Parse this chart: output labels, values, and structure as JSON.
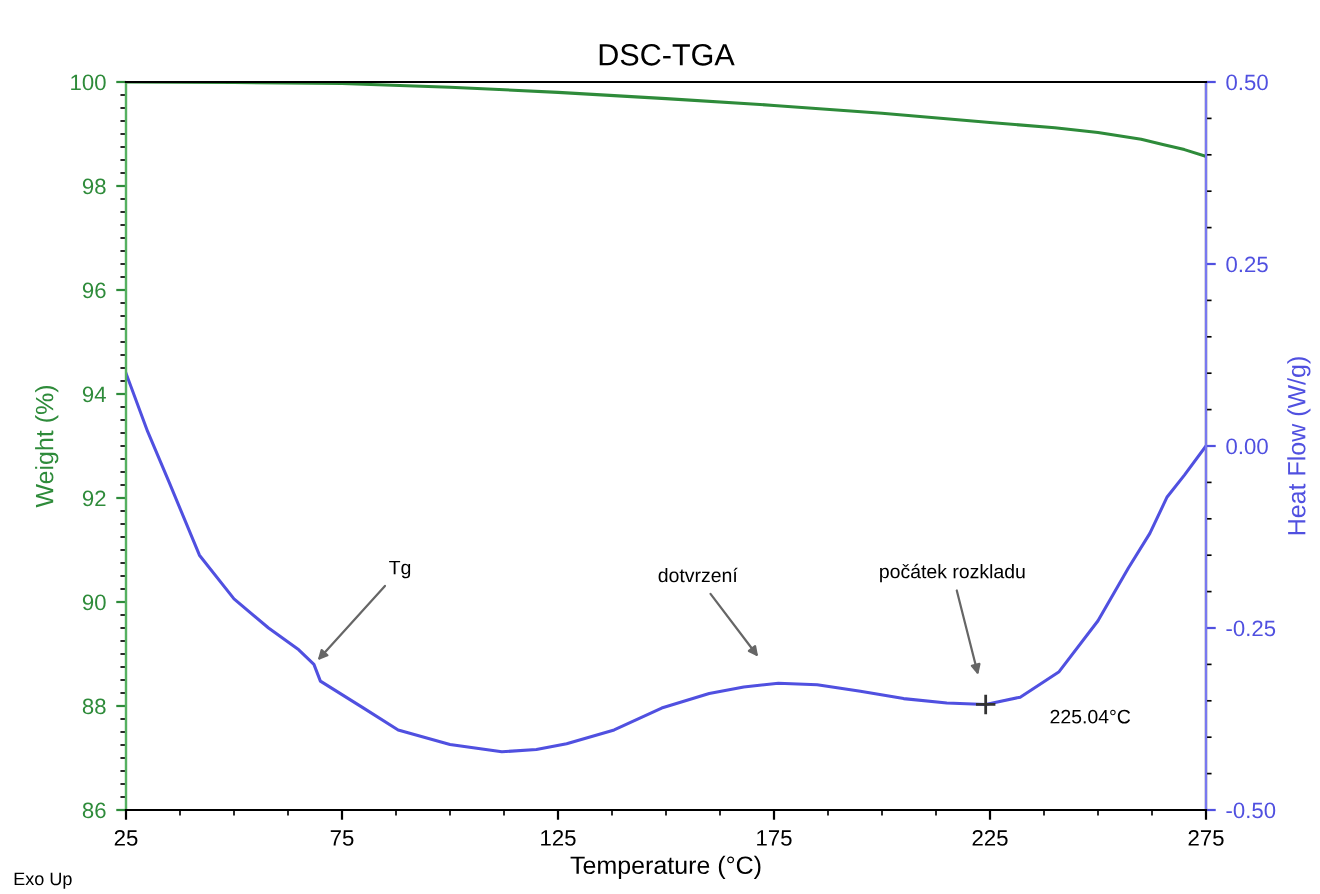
{
  "chart_data": {
    "type": "line",
    "title": "DSC-TGA",
    "xlabel": "Temperature (°C)",
    "ylabel": "Weight (%)",
    "y2label": "Heat Flow (W/g)",
    "xlim": [
      25,
      275
    ],
    "xticks": [
      25,
      75,
      125,
      175,
      225,
      275
    ],
    "ylim": [
      86,
      100
    ],
    "yticks": [
      86,
      88,
      90,
      92,
      94,
      96,
      98,
      100
    ],
    "y2lim": [
      -0.5,
      0.5
    ],
    "y2ticks": [
      {
        "value": -0.5,
        "label": "-0.50"
      },
      {
        "value": -0.25,
        "label": "-0.25"
      },
      {
        "value": 0,
        "label": "0.00"
      },
      {
        "value": 0.25,
        "label": "0.25"
      },
      {
        "value": 0.5,
        "label": "0.50"
      }
    ],
    "grid": false,
    "legend": false,
    "series": [
      {
        "color": "#2e8b3a",
        "x": [
          25,
          50,
          75,
          100,
          125,
          150,
          175,
          200,
          225,
          240,
          250,
          260,
          265,
          270,
          275
        ],
        "values": [
          100.0,
          99.99,
          99.97,
          99.9,
          99.8,
          99.68,
          99.55,
          99.4,
          99.22,
          99.12,
          99.03,
          98.9,
          98.8,
          98.7,
          98.57
        ]
      },
      {
        "color": "#5050e0",
        "axis": "y2",
        "x": [
          25,
          30,
          35,
          42,
          50,
          58,
          65,
          68.5,
          70,
          80,
          88,
          100,
          112,
          120,
          127,
          138,
          149,
          160,
          168,
          176,
          185,
          195,
          205,
          215,
          224,
          232,
          241,
          250,
          257,
          262,
          266,
          270,
          275
        ],
        "values": [
          0.1,
          0.02,
          -0.05,
          -0.15,
          -0.21,
          -0.25,
          -0.28,
          -0.3,
          -0.323,
          -0.36,
          -0.39,
          -0.41,
          -0.42,
          -0.417,
          -0.409,
          -0.39,
          -0.36,
          -0.34,
          -0.331,
          -0.326,
          -0.328,
          -0.337,
          -0.347,
          -0.353,
          -0.355,
          -0.345,
          -0.31,
          -0.24,
          -0.168,
          -0.12,
          -0.07,
          -0.04,
          0.0
        ]
      }
    ],
    "annotations": [
      {
        "text": "Tg",
        "x": 68.5,
        "y": 88.8
      },
      "dotvrzení",
      "počátek rozkladu",
      "225.04°C",
      "Exo Up"
    ]
  }
}
